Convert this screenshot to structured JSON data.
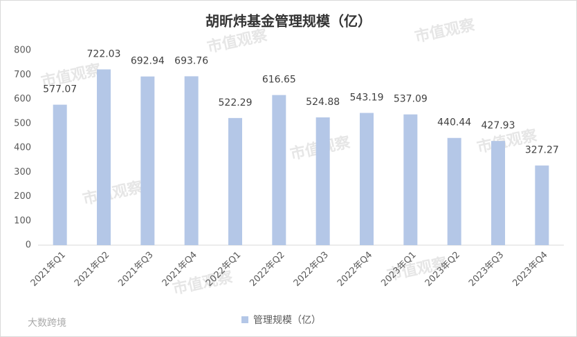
{
  "chart_data": {
    "type": "bar",
    "title": "胡昕炜基金管理规模（亿）",
    "categories": [
      "2021年Q1",
      "2021年Q2",
      "2021年Q3",
      "2021年Q4",
      "2022年Q1",
      "2022年Q2",
      "2022年Q3",
      "2022年Q4",
      "2023年Q1",
      "2023年Q2",
      "2023年Q3",
      "2023年Q4"
    ],
    "series": [
      {
        "name": "管理规模（亿）",
        "color": "#b4c7e7",
        "values": [
          577.07,
          722.03,
          692.94,
          693.76,
          522.29,
          616.65,
          524.88,
          543.19,
          537.09,
          440.44,
          427.93,
          327.27
        ]
      }
    ],
    "ylim": [
      0,
      800
    ],
    "yticks": [
      0,
      100,
      200,
      300,
      400,
      500,
      600,
      700,
      800
    ],
    "grid": false,
    "legend": "bottom",
    "watermark": "市值观察",
    "corner_mark": "大数跨境"
  }
}
